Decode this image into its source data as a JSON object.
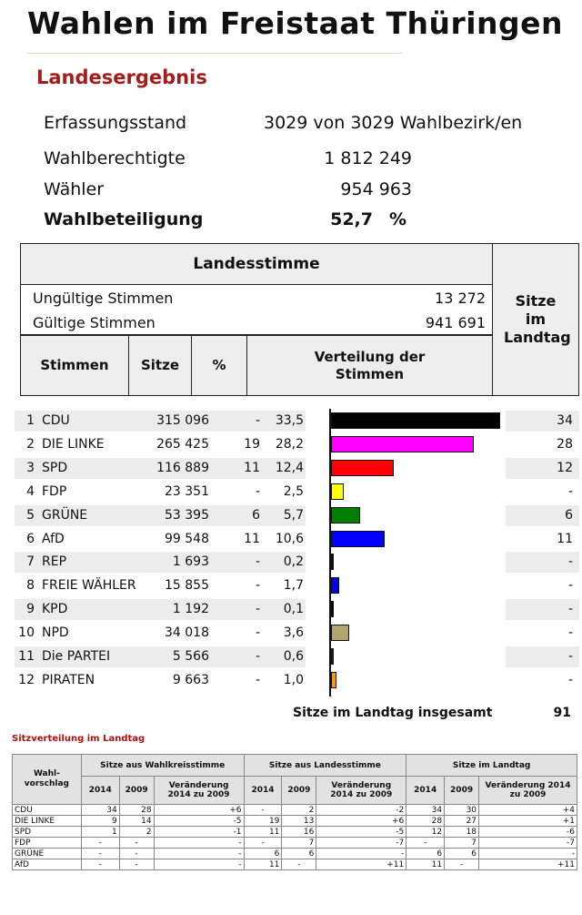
{
  "header": {
    "title": "Wahlen im Freistaat Thüringen",
    "section": "Landesergebnis"
  },
  "summary": {
    "erfassung_label": "Erfassungsstand",
    "erfassung_value": "3029 von 3029 Wahlbezirk/en",
    "wahlberechtigte_label": "Wahlberechtigte",
    "wahlberechtigte_value": "1 812 249",
    "waehler_label": "Wähler",
    "waehler_value": "954 963",
    "beteiligung_label": "Wahlbeteiligung",
    "beteiligung_value": "52,7",
    "beteiligung_unit": "%"
  },
  "landesstimme": {
    "heading": "Landesstimme",
    "sitze_heading": "Sitze im Landtag",
    "ungueltig_label": "Ungültige Stimmen",
    "ungueltig_value": "13 272",
    "gueltig_label": "Gültige Stimmen",
    "gueltig_value": "941 691",
    "col_stimmen": "Stimmen",
    "col_sitze": "Sitze",
    "col_pct": "%",
    "col_verteilung": "Verteilung der Stimmen"
  },
  "chart_data": {
    "type": "bar",
    "categories": [
      "CDU",
      "DIE LINKE",
      "SPD",
      "FDP",
      "GRÜNE",
      "AfD",
      "REP",
      "FREIE WÄHLER",
      "KPD",
      "NPD",
      "Die PARTEI",
      "PIRATEN"
    ],
    "values": [
      33.5,
      28.2,
      12.4,
      2.5,
      5.7,
      10.6,
      0.2,
      1.7,
      0.1,
      3.6,
      0.6,
      1.0
    ],
    "colors": [
      "#000000",
      "#ff00ff",
      "#ff0000",
      "#ffff00",
      "#008000",
      "#0000ff",
      "#000080",
      "#0000ff",
      "#000000",
      "#b5a36e",
      "#0000ff",
      "#ff9900"
    ],
    "xlim": [
      0,
      35
    ]
  },
  "parties": [
    {
      "nr": "1",
      "name": "CDU",
      "votes": "315 096",
      "sitze": "-",
      "pct": "33,5",
      "seats": "34"
    },
    {
      "nr": "2",
      "name": "DIE LINKE",
      "votes": "265 425",
      "sitze": "19",
      "pct": "28,2",
      "seats": "28"
    },
    {
      "nr": "3",
      "name": "SPD",
      "votes": "116 889",
      "sitze": "11",
      "pct": "12,4",
      "seats": "12"
    },
    {
      "nr": "4",
      "name": "FDP",
      "votes": "23 351",
      "sitze": "-",
      "pct": "2,5",
      "seats": "-"
    },
    {
      "nr": "5",
      "name": "GRÜNE",
      "votes": "53 395",
      "sitze": "6",
      "pct": "5,7",
      "seats": "6"
    },
    {
      "nr": "6",
      "name": "AfD",
      "votes": "99 548",
      "sitze": "11",
      "pct": "10,6",
      "seats": "11"
    },
    {
      "nr": "7",
      "name": "REP",
      "votes": "1 693",
      "sitze": "-",
      "pct": "0,2",
      "seats": "-"
    },
    {
      "nr": "8",
      "name": "FREIE WÄHLER",
      "votes": "15 855",
      "sitze": "-",
      "pct": "1,7",
      "seats": "-"
    },
    {
      "nr": "9",
      "name": "KPD",
      "votes": "1 192",
      "sitze": "-",
      "pct": "0,1",
      "seats": "-"
    },
    {
      "nr": "10",
      "name": "NPD",
      "votes": "34 018",
      "sitze": "-",
      "pct": "3,6",
      "seats": "-"
    },
    {
      "nr": "11",
      "name": "Die PARTEI",
      "votes": "5 566",
      "sitze": "-",
      "pct": "0,6",
      "seats": "-"
    },
    {
      "nr": "12",
      "name": "PIRATEN",
      "votes": "9 663",
      "sitze": "-",
      "pct": "1,0",
      "seats": "-"
    }
  ],
  "total": {
    "label": "Sitze im Landtag insgesamt",
    "value": "91"
  },
  "sitzverteilung": {
    "title": "Sitzverteilung im Landtag",
    "col_wahlvorschlag": "Wahl-vorschlag",
    "group_wahlkreis": "Sitze aus Wahlkreisstimme",
    "group_landes": "Sitze aus Landesstimme",
    "group_landtag": "Sitze im Landtag",
    "y2014": "2014",
    "y2009": "2009",
    "change": "Veränderung 2014 zu 2009",
    "rows": [
      {
        "party": "CDU",
        "v": [
          "34",
          "28",
          "+6",
          "-",
          "2",
          "-2",
          "34",
          "30",
          "+4"
        ]
      },
      {
        "party": "DIE LINKE",
        "v": [
          "9",
          "14",
          "-5",
          "19",
          "13",
          "+6",
          "28",
          "27",
          "+1"
        ]
      },
      {
        "party": "SPD",
        "v": [
          "1",
          "2",
          "-1",
          "11",
          "16",
          "-5",
          "12",
          "18",
          "-6"
        ]
      },
      {
        "party": "FDP",
        "v": [
          "-",
          "-",
          "-",
          "-",
          "7",
          "-7",
          "-",
          "7",
          "-7"
        ]
      },
      {
        "party": "GRÜNE",
        "v": [
          "-",
          "-",
          "-",
          "6",
          "6",
          "-",
          "6",
          "6",
          "-"
        ]
      },
      {
        "party": "AfD",
        "v": [
          "-",
          "-",
          "-",
          "11",
          "-",
          "+11",
          "11",
          "-",
          "+11"
        ]
      }
    ]
  }
}
